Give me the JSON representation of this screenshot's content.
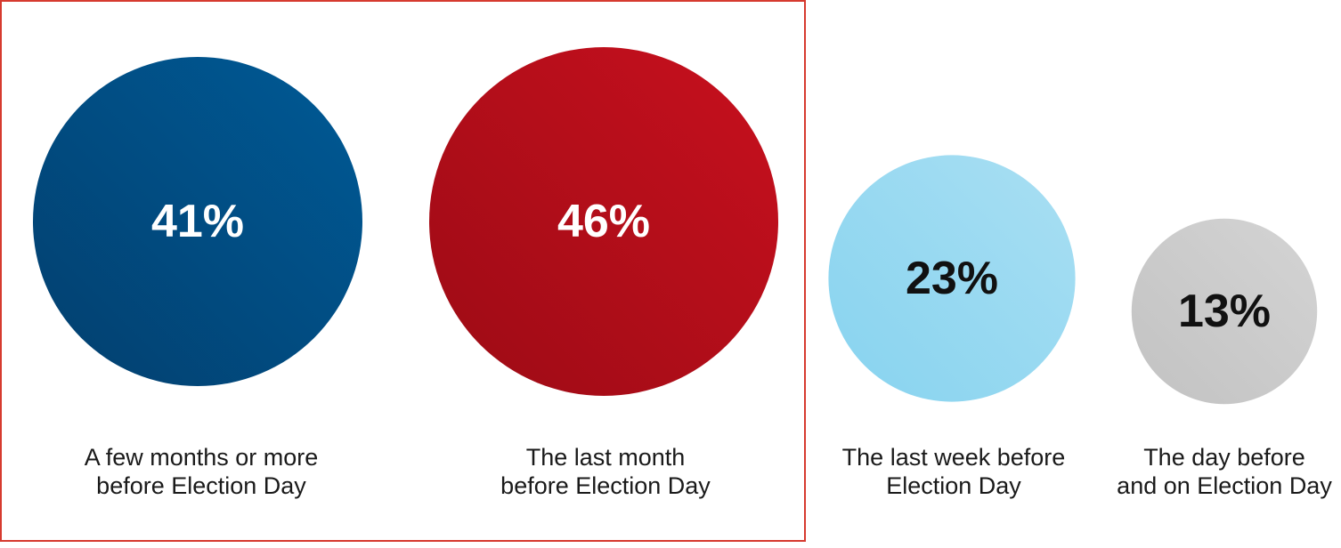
{
  "chart_data": {
    "type": "bubble",
    "unit": "%",
    "categories": [
      "A few months or more\nbefore Election Day",
      "The last month\nbefore Election Day",
      "The last week before\nElection Day",
      "The day before\nand on Election Day"
    ],
    "values": [
      41,
      46,
      23,
      13
    ],
    "value_labels": [
      "41%",
      "46%",
      "23%",
      "13%"
    ],
    "highlighted_group": [
      0,
      1
    ],
    "colors": {
      "bubbles": [
        "#005a96",
        "#c8101e",
        "#a9dff3",
        "#d4d4d4"
      ],
      "bubble_gradient_dark": [
        "#023f6e",
        "#9c0b15",
        "#87d3ef",
        "#c2c2c2"
      ],
      "label_text": [
        "#ffffff",
        "#ffffff",
        "#111111",
        "#111111"
      ],
      "highlight_box": "#d63a2f",
      "caption_text": "#1a1a1a"
    }
  }
}
